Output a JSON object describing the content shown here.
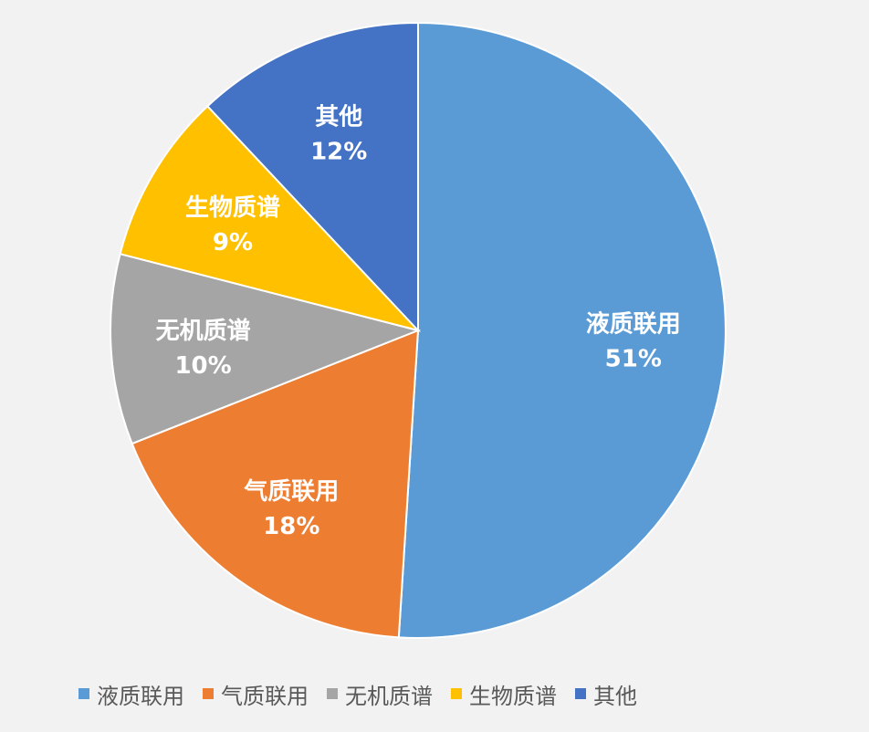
{
  "chart_data": {
    "type": "pie",
    "title": "",
    "slices": [
      {
        "name": "液质联用",
        "value": 51,
        "label": "51%",
        "color": "#5b9bd5"
      },
      {
        "name": "气质联用",
        "value": 18,
        "label": "18%",
        "color": "#ed7d31"
      },
      {
        "name": "无机质谱",
        "value": 10,
        "label": "10%",
        "color": "#a5a5a5"
      },
      {
        "name": "生物质谱",
        "value": 9,
        "label": "9%",
        "color": "#ffc000"
      },
      {
        "name": "其他",
        "value": 12,
        "label": "12%",
        "color": "#4472c4"
      }
    ],
    "legend_position": "bottom",
    "start_angle": "12 o'clock, clockwise"
  }
}
